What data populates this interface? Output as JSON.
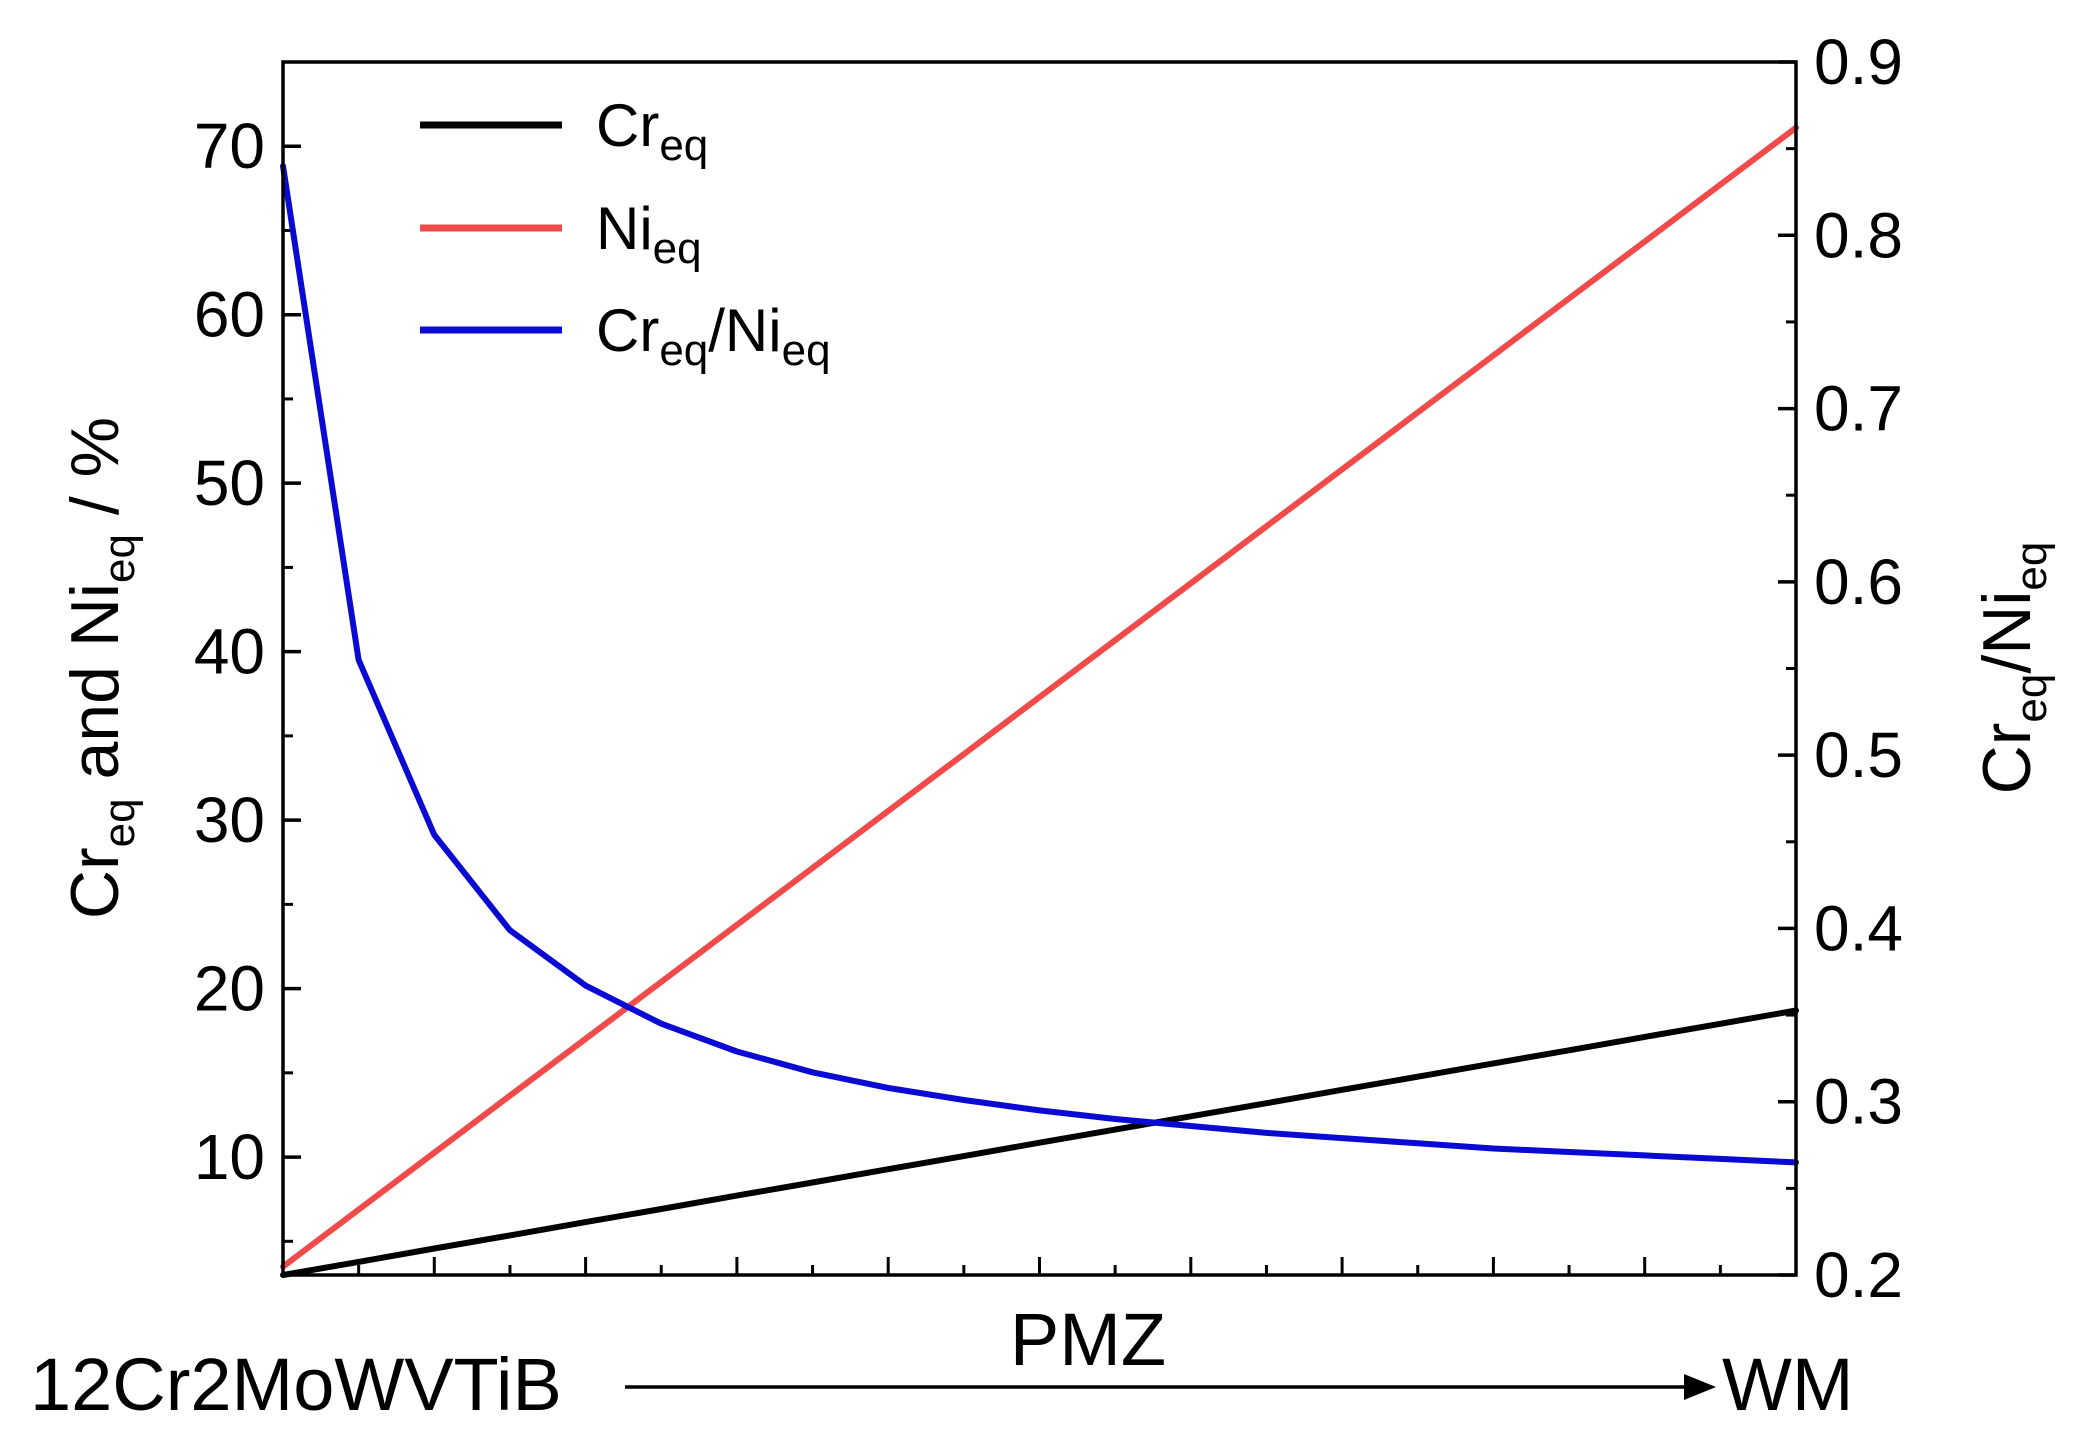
{
  "chart_data": {
    "type": "line",
    "x_points": 21,
    "left_axis": {
      "label": {
        "main1": "Cr",
        "sub1": "eq",
        "mid": " and Ni",
        "sub2": "eq",
        "end": " / %"
      },
      "ylim": [
        3,
        75
      ],
      "ticks": [
        10,
        20,
        30,
        40,
        50,
        60,
        70
      ],
      "minor_step": 5
    },
    "right_axis": {
      "label": {
        "main1": "Cr",
        "sub1": "eq",
        "mid": "/Ni",
        "sub2": "eq"
      },
      "ylim": [
        0.2,
        0.9
      ],
      "ticks": [
        0.2,
        0.3,
        0.4,
        0.5,
        0.6,
        0.7,
        0.8,
        0.9
      ],
      "tick_labels": [
        "0.2",
        "0.3",
        "0.4",
        "0.5",
        "0.6",
        "0.7",
        "0.8",
        "0.9"
      ],
      "minor_step": 0.05
    },
    "x_axis": {
      "label": "PMZ",
      "start_label": "12Cr2MoWVTiB",
      "end_label": "WM",
      "major_ticks_every": 2
    },
    "series": [
      {
        "name": "Cr_eq",
        "legend": {
          "main": "Cr",
          "sub": "eq",
          "rest": ""
        },
        "color": "#000000",
        "axis": "left",
        "values": [
          3.0,
          3.78,
          4.57,
          5.35,
          6.14,
          6.92,
          7.71,
          8.49,
          9.28,
          10.06,
          10.85,
          11.63,
          12.42,
          13.2,
          13.99,
          14.77,
          15.56,
          16.34,
          17.13,
          17.91,
          18.7
        ]
      },
      {
        "name": "Ni_eq",
        "legend": {
          "main": "Ni",
          "sub": "eq",
          "rest": ""
        },
        "color": "#f04a4a",
        "axis": "left",
        "values": [
          3.5,
          6.88,
          10.26,
          13.64,
          17.02,
          20.4,
          23.78,
          27.16,
          30.54,
          33.92,
          37.3,
          40.68,
          44.06,
          47.44,
          50.82,
          54.2,
          57.58,
          60.96,
          64.34,
          67.72,
          71.1
        ]
      },
      {
        "name": "Cr_eq/Ni_eq",
        "legend": {
          "main": "Cr",
          "sub": "eq",
          "rest": "/Ni",
          "sub2": "eq"
        },
        "color": "#0a0ad2",
        "axis": "right",
        "values": [
          0.84,
          0.555,
          0.454,
          0.399,
          0.367,
          0.345,
          0.329,
          0.317,
          0.308,
          0.301,
          0.295,
          0.29,
          0.286,
          0.282,
          0.279,
          0.276,
          0.273,
          0.271,
          0.269,
          0.267,
          0.265
        ]
      }
    ]
  }
}
